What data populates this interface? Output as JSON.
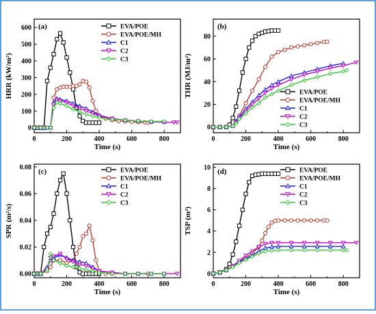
{
  "colors": {
    "EVA/POE": "#000000",
    "EVA/POE/MH": "#c0392b",
    "C1": "#1a1aff",
    "C2": "#cc00cc",
    "C3": "#33cc33"
  },
  "series_styles": {
    "EVA/POE": "square",
    "EVA/POE/MH": "circle",
    "C1": "triangle-up",
    "C2": "triangle-down",
    "C3": "diamond"
  },
  "chart_data": [
    {
      "type": "line",
      "label": "(a)",
      "xlabel": "Time (s)",
      "ylabel": "HRR (kW/m²)",
      "xlim": [
        0,
        900
      ],
      "ylim": [
        -30,
        650
      ],
      "xticks": [
        0,
        200,
        400,
        600,
        800
      ],
      "yticks": [
        0,
        100,
        200,
        300,
        400,
        500,
        600
      ],
      "legend": "top-right",
      "series": [
        {
          "name": "EVA/POE",
          "x": [
            0,
            20,
            40,
            60,
            80,
            100,
            120,
            140,
            160,
            180,
            200,
            220,
            240,
            260,
            280,
            300,
            320,
            340,
            360,
            380,
            400
          ],
          "y": [
            0,
            0,
            0,
            0,
            280,
            360,
            440,
            530,
            565,
            510,
            420,
            330,
            230,
            120,
            70,
            40,
            30,
            30,
            30,
            30,
            30
          ]
        },
        {
          "name": "EVA/POE/MH",
          "x": [
            0,
            40,
            80,
            100,
            120,
            140,
            160,
            180,
            200,
            220,
            240,
            260,
            280,
            300,
            320,
            340,
            360,
            380,
            400,
            440,
            480,
            520,
            560,
            600,
            640,
            680,
            700
          ],
          "y": [
            0,
            0,
            0,
            0,
            180,
            230,
            240,
            245,
            245,
            245,
            250,
            250,
            260,
            280,
            275,
            240,
            160,
            100,
            70,
            55,
            45,
            40,
            38,
            35,
            33,
            32,
            30
          ]
        },
        {
          "name": "C1",
          "x": [
            0,
            40,
            80,
            100,
            120,
            140,
            160,
            200,
            240,
            280,
            320,
            360,
            400,
            480,
            560,
            640,
            720,
            800
          ],
          "y": [
            0,
            0,
            0,
            0,
            150,
            175,
            170,
            160,
            145,
            130,
            115,
            95,
            75,
            55,
            45,
            40,
            35,
            35
          ]
        },
        {
          "name": "C2",
          "x": [
            0,
            40,
            80,
            100,
            120,
            140,
            160,
            200,
            240,
            280,
            320,
            360,
            400,
            480,
            560,
            640,
            720,
            800,
            860,
            880
          ],
          "y": [
            0,
            0,
            0,
            0,
            140,
            165,
            160,
            150,
            130,
            115,
            100,
            85,
            70,
            55,
            45,
            40,
            35,
            33,
            32,
            32
          ]
        },
        {
          "name": "C3",
          "x": [
            0,
            40,
            80,
            100,
            120,
            140,
            160,
            200,
            240,
            280,
            320,
            360,
            400,
            480,
            560,
            640,
            720,
            800
          ],
          "y": [
            0,
            0,
            0,
            0,
            120,
            150,
            145,
            130,
            110,
            95,
            80,
            70,
            60,
            50,
            45,
            40,
            38,
            38
          ]
        }
      ]
    },
    {
      "type": "line",
      "label": "(b)",
      "xlabel": "Time (s)",
      "ylabel": "THR (MJ/m²)",
      "xlim": [
        0,
        900
      ],
      "ylim": [
        -5,
        95
      ],
      "xticks": [
        0,
        200,
        400,
        600,
        800
      ],
      "yticks": [
        0,
        20,
        40,
        60,
        80
      ],
      "legend": "middle-right",
      "series": [
        {
          "name": "EVA/POE",
          "x": [
            0,
            40,
            80,
            100,
            120,
            140,
            160,
            180,
            200,
            220,
            240,
            260,
            280,
            300,
            320,
            340,
            360,
            380,
            400
          ],
          "y": [
            0,
            0,
            0,
            2,
            8,
            18,
            32,
            48,
            60,
            70,
            76,
            80,
            82,
            83,
            84,
            84.5,
            85,
            85,
            85
          ]
        },
        {
          "name": "EVA/POE/MH",
          "x": [
            0,
            40,
            80,
            120,
            140,
            160,
            200,
            240,
            280,
            320,
            360,
            400,
            440,
            480,
            520,
            560,
            600,
            640,
            680,
            700
          ],
          "y": [
            0,
            0,
            0,
            1,
            5,
            10,
            21,
            32,
            42,
            53,
            62,
            66,
            68,
            70,
            71,
            72,
            73,
            74,
            75,
            75
          ]
        },
        {
          "name": "C1",
          "x": [
            0,
            40,
            80,
            120,
            140,
            160,
            200,
            240,
            280,
            320,
            360,
            400,
            480,
            560,
            640,
            720,
            800
          ],
          "y": [
            0,
            0,
            0,
            1,
            5,
            9,
            16,
            22,
            28,
            33,
            37,
            40,
            45,
            48,
            51,
            54,
            56
          ]
        },
        {
          "name": "C2",
          "x": [
            0,
            40,
            80,
            120,
            140,
            160,
            200,
            240,
            280,
            320,
            360,
            400,
            480,
            560,
            640,
            720,
            800,
            880
          ],
          "y": [
            0,
            0,
            0,
            1,
            4,
            8,
            14,
            20,
            25,
            30,
            34,
            37,
            42,
            46,
            49,
            52,
            54,
            57
          ]
        },
        {
          "name": "C3",
          "x": [
            0,
            40,
            80,
            120,
            140,
            160,
            200,
            240,
            280,
            320,
            360,
            400,
            480,
            560,
            640,
            720,
            800,
            820
          ],
          "y": [
            0,
            0,
            0,
            1,
            3,
            7,
            12,
            17,
            21,
            26,
            29,
            32,
            37,
            41,
            44,
            47,
            49,
            50
          ]
        }
      ]
    },
    {
      "type": "line",
      "label": "(c)",
      "xlabel": "Time (s)",
      "ylabel": "SPR (m²/s)",
      "xlim": [
        0,
        900
      ],
      "ylim": [
        -0.003,
        0.082
      ],
      "xticks": [
        0,
        200,
        400,
        600,
        800
      ],
      "yticks": [
        0.0,
        0.02,
        0.04,
        0.06,
        0.08
      ],
      "ytick_labels": [
        "0.00",
        "0.02",
        "0.04",
        "0.06",
        "0.08"
      ],
      "legend": "top-right",
      "series": [
        {
          "name": "EVA/POE",
          "x": [
            0,
            20,
            40,
            60,
            80,
            100,
            120,
            140,
            160,
            180,
            200,
            220,
            240,
            260,
            280,
            300,
            320,
            340,
            360,
            380,
            400
          ],
          "y": [
            0,
            0,
            0,
            0.02,
            0.03,
            0.035,
            0.045,
            0.06,
            0.07,
            0.075,
            0.06,
            0.04,
            0.02,
            0.005,
            0.001,
            0,
            0,
            0,
            0,
            0,
            0
          ]
        },
        {
          "name": "EVA/POE/MH",
          "x": [
            0,
            40,
            80,
            100,
            120,
            160,
            200,
            240,
            260,
            280,
            300,
            320,
            340,
            360,
            380,
            400,
            440,
            480,
            560,
            640,
            700
          ],
          "y": [
            0,
            0,
            0.002,
            0.005,
            0.01,
            0.01,
            0.008,
            0.01,
            0.015,
            0.02,
            0.028,
            0.03,
            0.036,
            0.025,
            0.01,
            0.002,
            0,
            0,
            0,
            0,
            0
          ]
        },
        {
          "name": "C1",
          "x": [
            0,
            40,
            80,
            100,
            120,
            160,
            200,
            240,
            280,
            320,
            360,
            400,
            480,
            560,
            640,
            720,
            800
          ],
          "y": [
            0,
            0,
            0.005,
            0.01,
            0.012,
            0.014,
            0.012,
            0.01,
            0.009,
            0.008,
            0.005,
            0.002,
            0.001,
            0,
            0,
            0,
            0
          ]
        },
        {
          "name": "C2",
          "x": [
            0,
            40,
            80,
            100,
            120,
            160,
            200,
            240,
            280,
            320,
            360,
            400,
            480,
            560,
            640,
            720,
            800,
            880
          ],
          "y": [
            0,
            0,
            0.004,
            0.012,
            0.013,
            0.015,
            0.011,
            0.009,
            0.007,
            0.006,
            0.004,
            0.002,
            0.001,
            0,
            0,
            0,
            0,
            0
          ]
        },
        {
          "name": "C3",
          "x": [
            0,
            40,
            80,
            100,
            120,
            160,
            200,
            240,
            280,
            320,
            360,
            400,
            480,
            560,
            640,
            720,
            800
          ],
          "y": [
            0,
            0,
            0.003,
            0.015,
            0.01,
            0.008,
            0.006,
            0.005,
            0.004,
            0.003,
            0.002,
            0.001,
            0,
            0,
            0,
            0,
            0
          ]
        }
      ]
    },
    {
      "type": "line",
      "label": "(d)",
      "xlabel": "Time (s)",
      "ylabel": "TSP (m²)",
      "xlim": [
        0,
        900
      ],
      "ylim": [
        -0.4,
        10.3
      ],
      "xticks": [
        0,
        200,
        400,
        600,
        800
      ],
      "yticks": [
        0,
        2,
        4,
        6,
        8,
        10
      ],
      "legend": "middle-right",
      "series": [
        {
          "name": "EVA/POE",
          "x": [
            0,
            40,
            80,
            100,
            120,
            140,
            160,
            180,
            200,
            220,
            240,
            260,
            280,
            300,
            320,
            340,
            360,
            380,
            400
          ],
          "y": [
            0,
            0.1,
            0.4,
            0.9,
            1.8,
            3.0,
            4.5,
            6.0,
            7.5,
            8.6,
            9.2,
            9.3,
            9.35,
            9.4,
            9.4,
            9.4,
            9.4,
            9.4,
            9.4
          ]
        },
        {
          "name": "EVA/POE/MH",
          "x": [
            0,
            40,
            80,
            120,
            160,
            200,
            240,
            280,
            300,
            320,
            340,
            360,
            380,
            400,
            440,
            480,
            520,
            560,
            600,
            640,
            680,
            700
          ],
          "y": [
            0,
            0.1,
            0.3,
            0.7,
            1.1,
            1.5,
            1.9,
            2.5,
            3.1,
            3.8,
            4.4,
            4.8,
            4.95,
            5.0,
            5.0,
            5.0,
            5.0,
            5.0,
            5.0,
            5.0,
            5.0,
            5.0
          ]
        },
        {
          "name": "C1",
          "x": [
            0,
            40,
            80,
            120,
            160,
            200,
            240,
            280,
            320,
            360,
            400,
            480,
            560,
            640,
            720,
            800
          ],
          "y": [
            0,
            0.1,
            0.3,
            0.7,
            1.1,
            1.4,
            1.7,
            2.1,
            2.4,
            2.5,
            2.55,
            2.55,
            2.55,
            2.55,
            2.55,
            2.55
          ]
        },
        {
          "name": "C2",
          "x": [
            0,
            40,
            80,
            120,
            160,
            200,
            240,
            280,
            320,
            360,
            400,
            480,
            560,
            640,
            720,
            800,
            880
          ],
          "y": [
            0,
            0.1,
            0.3,
            0.7,
            1.2,
            1.7,
            2.1,
            2.5,
            2.8,
            2.9,
            2.9,
            2.9,
            2.9,
            2.9,
            2.9,
            2.9,
            2.9
          ]
        },
        {
          "name": "C3",
          "x": [
            0,
            40,
            80,
            120,
            160,
            200,
            240,
            280,
            320,
            360,
            400,
            480,
            560,
            640,
            720,
            800,
            820
          ],
          "y": [
            0,
            0.1,
            0.3,
            0.6,
            1.0,
            1.3,
            1.6,
            1.9,
            2.1,
            2.15,
            2.2,
            2.2,
            2.2,
            2.2,
            2.2,
            2.2,
            2.2
          ]
        }
      ]
    }
  ]
}
